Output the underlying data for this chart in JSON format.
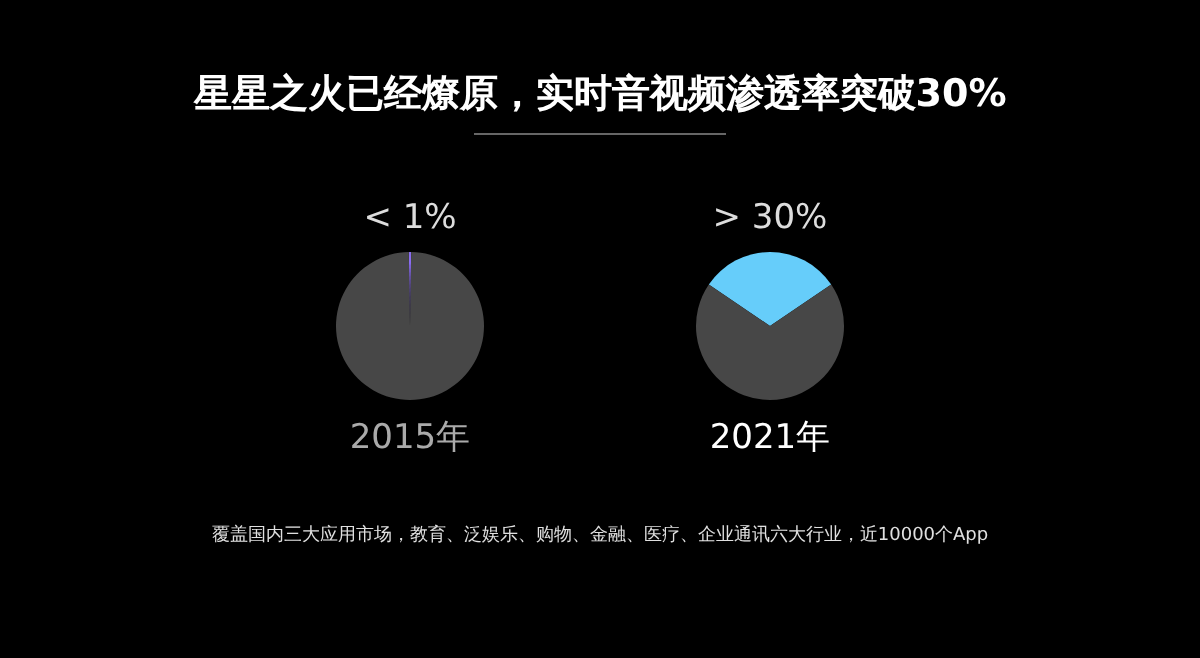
{
  "chart_data": [
    {
      "type": "pie",
      "title": "星星之火已经燎原，实时音视频渗透率突破30%",
      "xlabel": "2015年",
      "categories": [
        null,
        null
      ],
      "values": [
        0.5,
        99.5
      ],
      "colors": [
        "#8a6cf0",
        "#474747"
      ],
      "value_labels": [
        "< 1%",
        null
      ],
      "annotations": [
        "覆盖国内三大应用市场，教育、泛娱乐、购物、金融、医疗、企业通讯六大行业，近10000个App"
      ]
    },
    {
      "type": "pie",
      "xlabel": "2021年",
      "categories": [
        null,
        null
      ],
      "values": [
        31,
        69
      ],
      "colors": [
        "#66cdfa",
        "#474747"
      ],
      "value_labels": [
        "> 30%",
        null
      ]
    }
  ]
}
